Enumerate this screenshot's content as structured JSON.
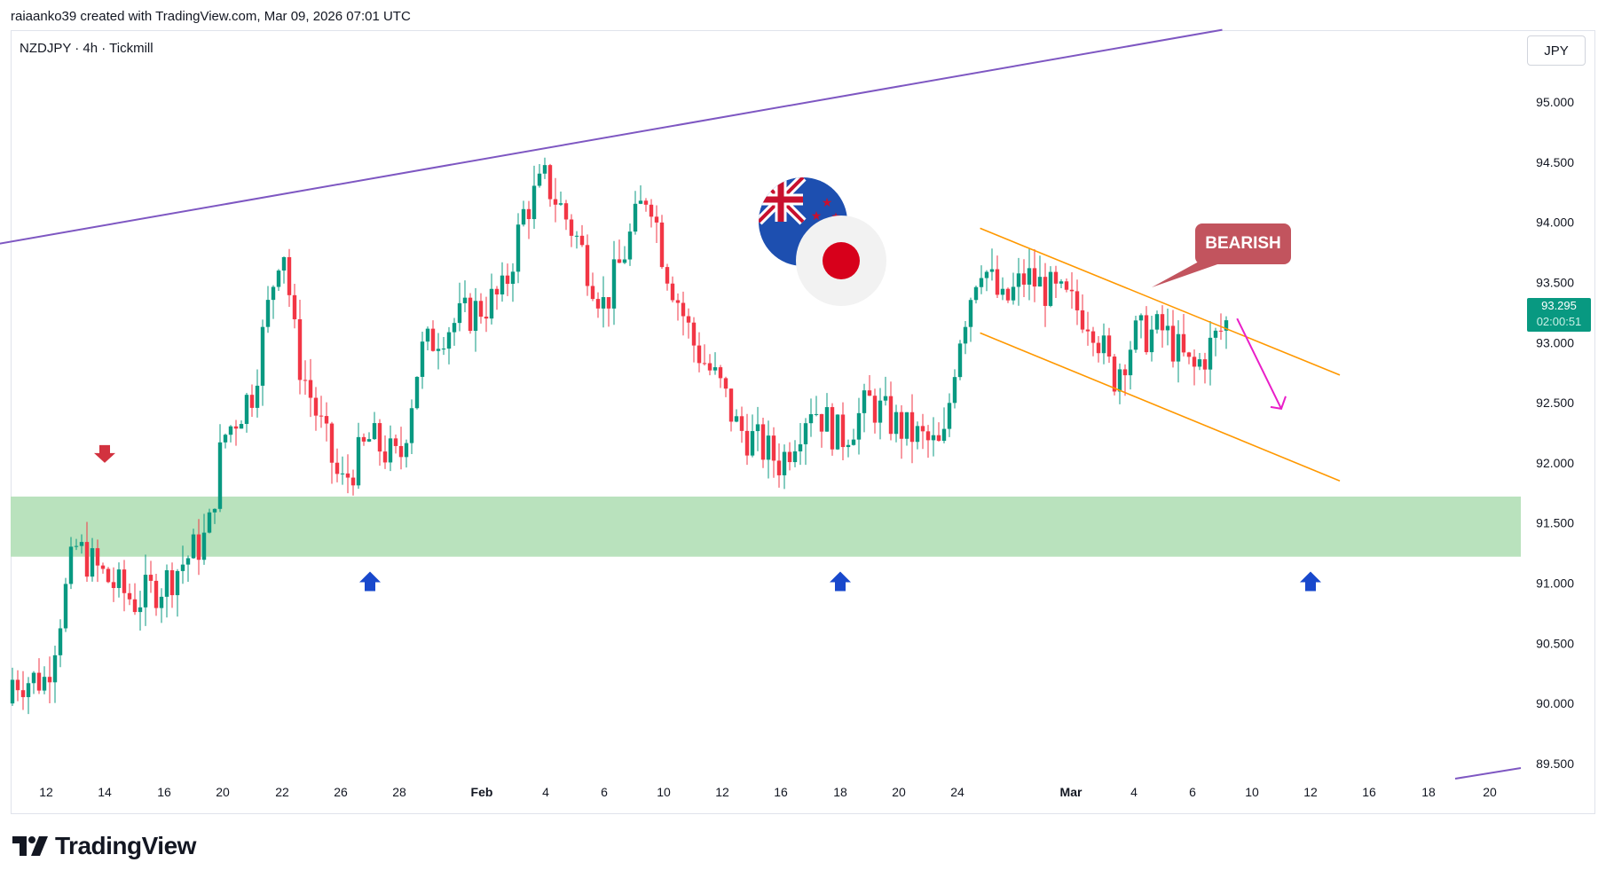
{
  "header": {
    "credit": "raiaanko39 created with TradingView.com, Mar 09, 2026 07:01 UTC"
  },
  "symbol": {
    "title": "NZDJPY · 4h · Tickmill"
  },
  "currency_button": {
    "label": "JPY"
  },
  "price_tag": {
    "price": "93.295",
    "countdown": "02:00:51"
  },
  "annotation": {
    "label": "BEARISH"
  },
  "brand": {
    "name": "TradingView"
  },
  "colors": {
    "up": "#089981",
    "down": "#f23645",
    "trendline": "#7e57c2",
    "channel": "#ff9800",
    "zone": "#b9e2bd",
    "projection": "#e91ec8",
    "arrow_up": "#1848cc",
    "arrow_down": "#d2323f",
    "bear_label": "#c2545e"
  },
  "icons": [
    "nz-flag-icon",
    "japan-flag-icon",
    "tradingview-logo-icon"
  ],
  "chart_data": {
    "type": "candlestick",
    "ylim": [
      89.4,
      95.55
    ],
    "y_ticks": [
      "95.000",
      "94.500",
      "94.000",
      "93.500",
      "93.000",
      "92.500",
      "92.000",
      "91.500",
      "91.000",
      "90.500",
      "90.000",
      "89.500"
    ],
    "x_ticks": [
      "12",
      "14",
      "16",
      "20",
      "22",
      "26",
      "28",
      "Feb",
      "4",
      "6",
      "10",
      "12",
      "16",
      "18",
      "20",
      "24",
      "Mar",
      "4",
      "6",
      "10",
      "12",
      "16",
      "18",
      "20"
    ],
    "close_path": [
      [
        "Jan 12",
        90.2
      ],
      [
        "Jan 13",
        91.3
      ],
      [
        "Jan 14",
        91.05
      ],
      [
        "Jan 15",
        90.85
      ],
      [
        "Jan 16",
        91.0
      ],
      [
        "Jan 19",
        91.4
      ],
      [
        "Jan 20",
        92.2
      ],
      [
        "Jan 21",
        92.6
      ],
      [
        "Jan 22",
        93.9
      ],
      [
        "Jan 23",
        92.9
      ],
      [
        "Jan 26",
        91.8
      ],
      [
        "Jan 27",
        92.2
      ],
      [
        "Jan 28",
        92.0
      ],
      [
        "Jan 29",
        92.9
      ],
      [
        "Jan 30",
        93.1
      ],
      [
        "Feb 2",
        93.4
      ],
      [
        "Feb 3",
        94.1
      ],
      [
        "Feb 4",
        94.35
      ],
      [
        "Feb 5",
        93.9
      ],
      [
        "Feb 6",
        93.3
      ],
      [
        "Feb 9",
        94.3
      ],
      [
        "Feb 10",
        93.7
      ],
      [
        "Feb 11",
        93.0
      ],
      [
        "Feb 12",
        92.6
      ],
      [
        "Feb 13",
        92.3
      ],
      [
        "Feb 16",
        92.0
      ],
      [
        "Feb 17",
        92.5
      ],
      [
        "Feb 18",
        92.2
      ],
      [
        "Feb 19",
        92.5
      ],
      [
        "Feb 20",
        92.3
      ],
      [
        "Feb 23",
        92.1
      ],
      [
        "Feb 24",
        93.0
      ],
      [
        "Feb 25",
        93.7
      ],
      [
        "Feb 26",
        93.3
      ],
      [
        "Feb 27",
        93.55
      ],
      [
        "Mar 2",
        93.2
      ],
      [
        "Mar 3",
        92.7
      ],
      [
        "Mar 4",
        93.05
      ],
      [
        "Mar 5",
        93.1
      ],
      [
        "Mar 6",
        92.75
      ],
      [
        "Mar 9",
        93.295
      ]
    ],
    "support_zone": [
      91.22,
      91.72
    ],
    "resistance_trendline": [
      [
        "Jan 8",
        93.72
      ],
      [
        "Mar 8",
        95.6
      ]
    ],
    "channel_upper": [
      [
        "Feb 25",
        93.95
      ],
      [
        "Mar 14",
        92.73
      ]
    ],
    "channel_lower": [
      [
        "Feb 25",
        93.08
      ],
      [
        "Mar 14",
        91.85
      ]
    ],
    "projection": [
      [
        "Mar 9",
        93.2
      ],
      [
        "Mar 11",
        92.45
      ]
    ],
    "signal_arrows": [
      {
        "direction": "down",
        "at": "Jan 14",
        "price": 92.0
      },
      {
        "direction": "up",
        "at": "Jan 27",
        "price": 91.0
      },
      {
        "direction": "up",
        "at": "Feb 18",
        "price": 91.0
      },
      {
        "direction": "up",
        "at": "Mar 12",
        "price": 91.0
      }
    ]
  }
}
